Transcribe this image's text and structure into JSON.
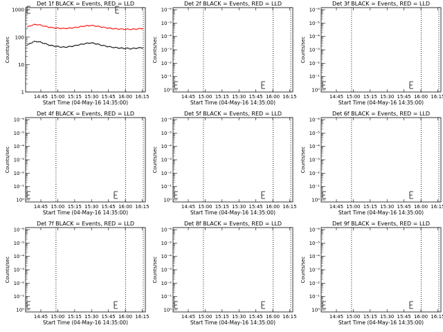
{
  "chart_data": [
    {
      "type": "line",
      "title": "Det 1f BLACK = Events, RED = LLD",
      "xlabel": "Start Time (04-May-16 14:35:00)",
      "ylabel": "Counts/sec",
      "x_ticks": [
        "14:45",
        "15:00",
        "15:15",
        "15:30",
        "15:45",
        "16:00",
        "16:15"
      ],
      "y_scale": "log",
      "y_ticks": [
        "1",
        "10",
        "100",
        "1000"
      ],
      "ylim": [
        1,
        1200
      ],
      "xlim_minutes": [
        0,
        105
      ],
      "vlines_minutes": [
        18,
        88,
        107
      ],
      "series": [
        {
          "name": "LLD",
          "color": "#ff0000",
          "x": [
            0,
            3,
            6,
            9,
            12,
            15,
            18,
            21,
            24,
            27,
            30,
            33,
            36,
            39,
            42,
            45,
            48,
            51,
            54,
            57,
            60,
            63,
            66,
            69,
            72,
            75,
            78,
            81,
            84,
            87,
            90,
            93,
            96,
            99,
            102,
            105
          ],
          "y": [
            230,
            260,
            285,
            290,
            275,
            255,
            240,
            228,
            220,
            215,
            210,
            208,
            210,
            215,
            222,
            232,
            242,
            252,
            262,
            268,
            262,
            250,
            238,
            228,
            218,
            210,
            205,
            200,
            198,
            196,
            195,
            194,
            196,
            200,
            205,
            210
          ]
        },
        {
          "name": "Events",
          "color": "#000000",
          "x": [
            0,
            3,
            6,
            9,
            12,
            15,
            18,
            21,
            24,
            27,
            30,
            33,
            36,
            39,
            42,
            45,
            48,
            51,
            54,
            57,
            60,
            63,
            66,
            69,
            72,
            75,
            78,
            81,
            84,
            87,
            90,
            93,
            96,
            99,
            102,
            105
          ],
          "y": [
            50,
            60,
            68,
            70,
            66,
            60,
            55,
            50,
            48,
            46,
            44,
            43,
            44,
            46,
            48,
            51,
            54,
            57,
            60,
            62,
            60,
            56,
            52,
            49,
            46,
            44,
            42,
            41,
            40,
            39,
            39,
            38,
            39,
            40,
            41,
            42
          ]
        }
      ]
    },
    {
      "type": "line",
      "title": "Det 2f BLACK = Events, RED = LLD",
      "xlabel": "Start Time (04-May-16 14:35:00)",
      "ylabel": "Counts/sec",
      "x_ticks": [
        "14:45",
        "15:00",
        "15:15",
        "15:30",
        "15:45",
        "16:00",
        "16:15"
      ],
      "y_scale": "log",
      "y_ticks": [
        "10⁰",
        "10⁻¹",
        "10⁻²",
        "10⁻³",
        "10⁻⁴",
        "10⁻⁵",
        "10⁻⁶"
      ],
      "vlines_minutes": [
        18,
        88,
        107
      ],
      "series": []
    },
    {
      "type": "line",
      "title": "Det 3f BLACK = Events, RED = LLD",
      "xlabel": "Start Time (04-May-16 14:35:00)",
      "ylabel": "Counts/sec",
      "x_ticks": [
        "14:45",
        "15:00",
        "15:15",
        "15:30",
        "15:45",
        "16:00",
        "16:15"
      ],
      "y_scale": "log",
      "y_ticks": [
        "10⁰",
        "10⁻¹",
        "10⁻²",
        "10⁻³",
        "10⁻⁴",
        "10⁻⁵",
        "10⁻⁶"
      ],
      "vlines_minutes": [
        18,
        88,
        107
      ],
      "series": []
    },
    {
      "type": "line",
      "title": "Det 4f BLACK = Events, RED = LLD",
      "xlabel": "Start Time (04-May-16 14:35:00)",
      "ylabel": "Counts/sec",
      "x_ticks": [
        "14:45",
        "15:00",
        "15:15",
        "15:30",
        "15:45",
        "16:00",
        "16:15"
      ],
      "y_scale": "log",
      "y_ticks": [
        "10⁰",
        "10⁻¹",
        "10⁻²",
        "10⁻³",
        "10⁻⁴",
        "10⁻⁵",
        "10⁻⁶"
      ],
      "vlines_minutes": [
        18,
        88,
        107
      ],
      "series": []
    },
    {
      "type": "line",
      "title": "Det 5f BLACK = Events, RED = LLD",
      "xlabel": "Start Time (04-May-16 14:35:00)",
      "ylabel": "Counts/sec",
      "x_ticks": [
        "14:45",
        "15:00",
        "15:15",
        "15:30",
        "15:45",
        "16:00",
        "16:15"
      ],
      "y_scale": "log",
      "y_ticks": [
        "10⁰",
        "10⁻¹",
        "10⁻²",
        "10⁻³",
        "10⁻⁴",
        "10⁻⁵",
        "10⁻⁶"
      ],
      "vlines_minutes": [
        18,
        88,
        107
      ],
      "series": []
    },
    {
      "type": "line",
      "title": "Det 6f BLACK = Events, RED = LLD",
      "xlabel": "Start Time (04-May-16 14:35:00)",
      "ylabel": "Counts/sec",
      "x_ticks": [
        "14:45",
        "15:00",
        "15:15",
        "15:30",
        "15:45",
        "16:00",
        "16:15"
      ],
      "y_scale": "log",
      "y_ticks": [
        "10⁰",
        "10⁻¹",
        "10⁻²",
        "10⁻³",
        "10⁻⁴",
        "10⁻⁵",
        "10⁻⁶"
      ],
      "vlines_minutes": [
        18,
        88,
        107
      ],
      "series": []
    },
    {
      "type": "line",
      "title": "Det 7f BLACK = Events, RED = LLD",
      "xlabel": "Start Time (04-May-16 14:35:00)",
      "ylabel": "Counts/sec",
      "x_ticks": [
        "14:45",
        "15:00",
        "15:15",
        "15:30",
        "15:45",
        "16:00",
        "16:15"
      ],
      "y_scale": "log",
      "y_ticks": [
        "10⁰",
        "10⁻¹",
        "10⁻²",
        "10⁻³",
        "10⁻⁴",
        "10⁻⁵",
        "10⁻⁶"
      ],
      "vlines_minutes": [
        18,
        88,
        107
      ],
      "series": []
    },
    {
      "type": "line",
      "title": "Det 8f BLACK = Events, RED = LLD",
      "xlabel": "Start Time (04-May-16 14:35:00)",
      "ylabel": "Counts/sec",
      "x_ticks": [
        "14:45",
        "15:00",
        "15:15",
        "15:30",
        "15:45",
        "16:00",
        "16:15"
      ],
      "y_scale": "log",
      "y_ticks": [
        "10⁰",
        "10⁻¹",
        "10⁻²",
        "10⁻³",
        "10⁻⁴",
        "10⁻⁵",
        "10⁻⁶"
      ],
      "vlines_minutes": [
        18,
        88,
        107
      ],
      "series": []
    },
    {
      "type": "line",
      "title": "Det 9f BLACK = Events, RED = LLD",
      "xlabel": "Start Time (04-May-16 14:35:00)",
      "ylabel": "Counts/sec",
      "x_ticks": [
        "14:45",
        "15:00",
        "15:15",
        "15:30",
        "15:45",
        "16:00",
        "16:15"
      ],
      "y_scale": "log",
      "y_ticks": [
        "10⁰",
        "10⁻¹",
        "10⁻²",
        "10⁻³",
        "10⁻⁴",
        "10⁻⁵",
        "10⁻⁶"
      ],
      "vlines_minutes": [
        18,
        88,
        107
      ],
      "series": []
    }
  ]
}
